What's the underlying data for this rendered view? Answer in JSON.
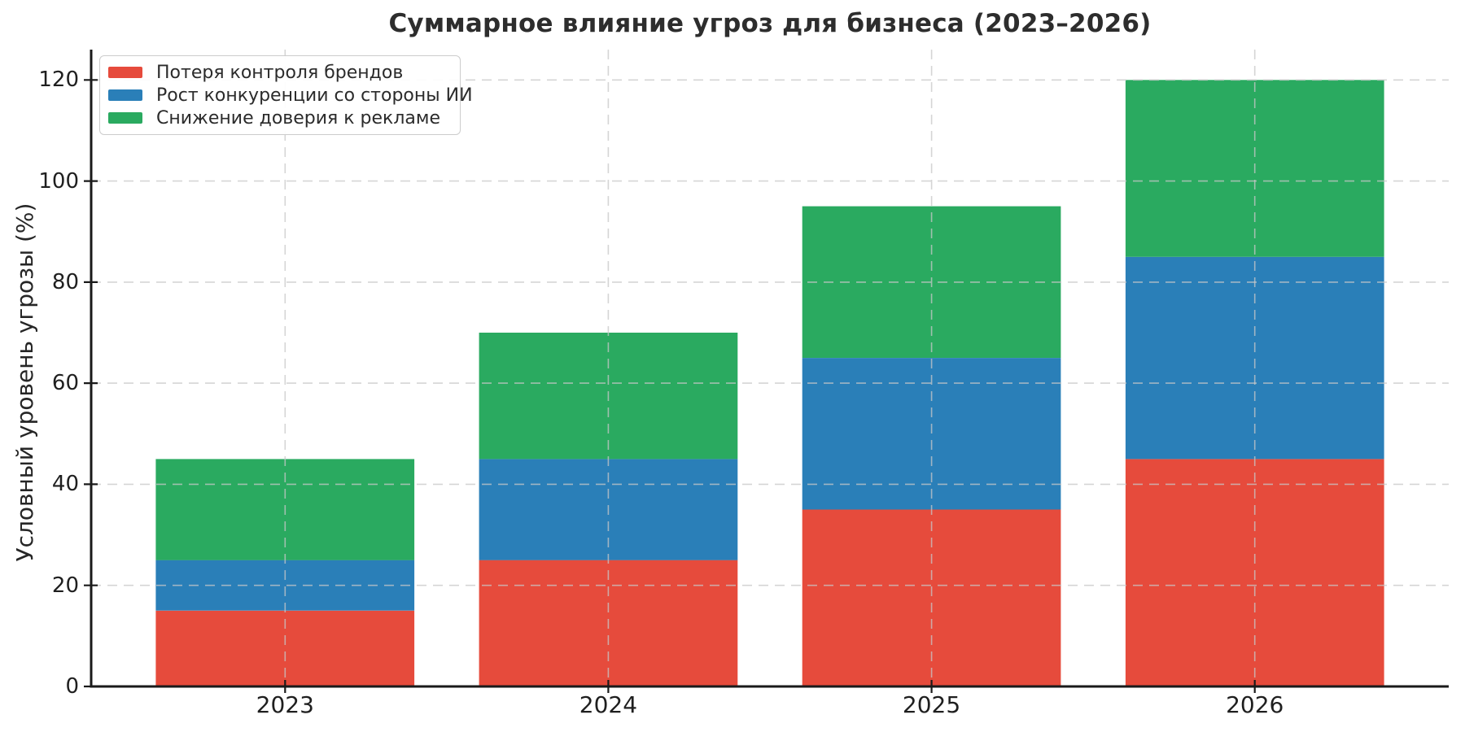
{
  "chart_data": {
    "type": "bar",
    "stacked": true,
    "title": "Суммарное влияние угроз для бизнеса (2023–2026)",
    "ylabel": "Условный уровень угрозы (%)",
    "xlabel": "",
    "categories": [
      "2023",
      "2024",
      "2025",
      "2026"
    ],
    "series": [
      {
        "name": "Потеря контроля брендов",
        "color": "#e64b3c",
        "values": [
          15,
          25,
          35,
          45
        ]
      },
      {
        "name": "Рост конкуренции со стороны ИИ",
        "color": "#2a7fb8",
        "values": [
          10,
          20,
          30,
          40
        ]
      },
      {
        "name": "Снижение доверия к рекламе",
        "color": "#2aaa60",
        "values": [
          20,
          25,
          30,
          35
        ]
      }
    ],
    "stack_totals": [
      45,
      70,
      95,
      120
    ],
    "yticks": [
      0,
      20,
      40,
      60,
      80,
      100,
      120
    ],
    "ylim": [
      0,
      126
    ],
    "grid": "dashed-horizontal-and-vertical",
    "grid_color": "#c8c8c8",
    "axis_color": "#1a1a1a",
    "tick_text_color": "#1f1f1f",
    "title_color": "#2d2d2d",
    "legend_position": "upper-left",
    "legend_border_color": "#cccccc",
    "background_color": "#ffffff"
  }
}
